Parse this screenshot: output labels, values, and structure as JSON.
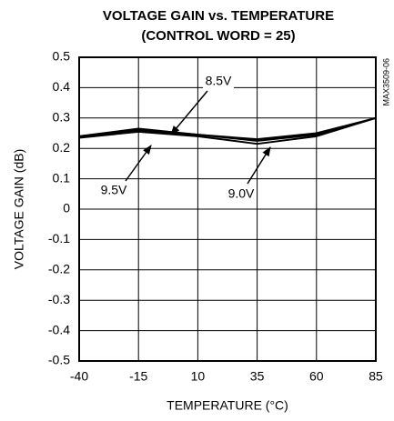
{
  "chart_data": {
    "type": "line",
    "title": "VOLTAGE GAIN vs. TEMPERATURE",
    "subtitle": "(CONTROL WORD = 25)",
    "x_label": "TEMPERATURE (°C)",
    "y_label": "VOLTAGE GAIN (dB)",
    "side_note": "MAX3509-06",
    "x": [
      -40,
      -15,
      10,
      35,
      60,
      85
    ],
    "series": [
      {
        "name": "8.5V",
        "color": "#000000",
        "values": [
          0.24,
          0.265,
          0.245,
          0.23,
          0.25,
          0.3
        ]
      },
      {
        "name": "9.0V",
        "color": "#000000",
        "values": [
          0.235,
          0.255,
          0.24,
          0.215,
          0.24,
          0.3
        ]
      },
      {
        "name": "9.5V",
        "color": "#000000",
        "values": [
          0.24,
          0.26,
          0.245,
          0.225,
          0.245,
          0.3
        ]
      }
    ],
    "xlim": [
      -40,
      85
    ],
    "xticks": [
      -40,
      -15,
      10,
      35,
      60,
      85
    ],
    "ylim": [
      -0.5,
      0.5
    ],
    "yticks": [
      -0.5,
      -0.4,
      -0.3,
      -0.2,
      -0.1,
      0,
      0.1,
      0.2,
      0.3,
      0.4,
      0.5
    ],
    "grid": true
  }
}
